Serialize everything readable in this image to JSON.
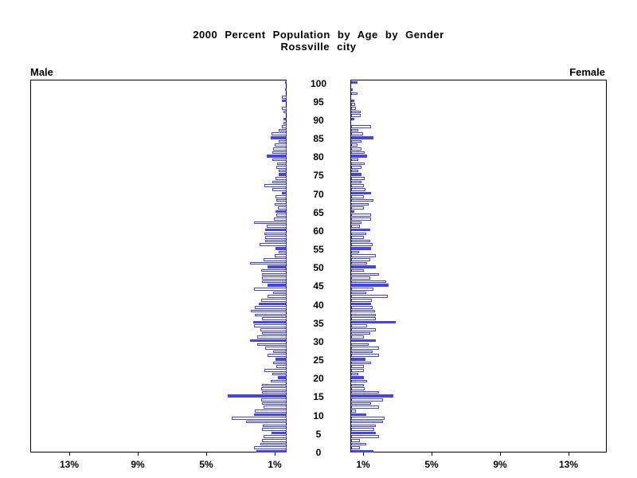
{
  "title": {
    "line1": "2000 Percent Population by Age by Gender",
    "line2": "Rossville city"
  },
  "left_header": "Male",
  "right_header": "Female",
  "colors": {
    "highlight_bar_fill": "#4444ee",
    "bar_outline": "#4343ee",
    "bar_fill": "#ffffff",
    "axis_and_text": "#000000",
    "background": "#ffffff"
  },
  "chart_data": {
    "type": "bar",
    "subtype": "population-pyramid",
    "title": "2000 Percent Population by Age by Gender",
    "subtitle": "Rossville city",
    "age_min": 0,
    "age_max": 100,
    "age_tick_interval": 5,
    "age_tick_labels": [
      "0",
      "5",
      "10",
      "15",
      "20",
      "25",
      "30",
      "35",
      "40",
      "45",
      "50",
      "55",
      "60",
      "65",
      "70",
      "75",
      "80",
      "85",
      "90",
      "95",
      "100"
    ],
    "x_unit": "percent of population",
    "x_max_pct": 15,
    "x_tick_labels_male": [
      {
        "label": "13%",
        "pct": 13
      },
      {
        "label": "9%",
        "pct": 9
      },
      {
        "label": "5%",
        "pct": 5
      },
      {
        "label": "1%",
        "pct": 1
      }
    ],
    "x_tick_labels_female": [
      {
        "label": "1%",
        "pct": 1
      },
      {
        "label": "5%",
        "pct": 5
      },
      {
        "label": "9%",
        "pct": 9
      },
      {
        "label": "13%",
        "pct": 13
      }
    ],
    "highlight_every_n_years": 5,
    "legend_position": "none",
    "grid": false,
    "series": [
      {
        "name": "Male",
        "values": [
          1.75,
          1.9,
          1.55,
          1.45,
          1.35,
          0.9,
          1.45,
          1.4,
          2.35,
          3.2,
          1.9,
          1.85,
          1.35,
          1.45,
          1.5,
          3.45,
          1.45,
          1.5,
          1.45,
          0.95,
          0.5,
          0.85,
          1.3,
          0.6,
          0.8,
          0.65,
          1.1,
          0.8,
          1.25,
          1.7,
          2.15,
          1.7,
          1.45,
          1.55,
          1.9,
          1.95,
          1.45,
          1.85,
          2.1,
          1.85,
          1.65,
          1.5,
          1.1,
          0.8,
          1.9,
          1.1,
          1.45,
          1.45,
          1.45,
          1.5,
          1.1,
          2.15,
          1.35,
          0.7,
          0.45,
          0.65,
          1.6,
          1.25,
          1.25,
          1.3,
          1.25,
          1.15,
          1.9,
          0.75,
          0.6,
          0.65,
          0.5,
          0.7,
          0.6,
          0.65,
          0.3,
          0.85,
          1.3,
          0.85,
          0.65,
          0.45,
          0.45,
          0.6,
          0.55,
          0.85,
          1.15,
          0.85,
          0.8,
          0.7,
          0.45,
          0.95,
          0.9,
          0.45,
          0.3,
          0.2,
          0.2,
          0,
          0.2,
          0.3,
          0,
          0.3,
          0.3,
          0,
          0.1,
          0,
          0.05
        ]
      },
      {
        "name": "Female",
        "values": [
          1.3,
          0.5,
          0.9,
          0.5,
          1.65,
          1.45,
          1.35,
          1.45,
          1.85,
          1.95,
          0.9,
          0.3,
          1.65,
          1.15,
          1.85,
          2.45,
          1.65,
          0.8,
          0.75,
          0.95,
          0.75,
          0.4,
          0.75,
          0.75,
          1.15,
          0.85,
          1.65,
          1.25,
          1.65,
          1.0,
          1.45,
          0.75,
          1.1,
          1.45,
          0.95,
          2.6,
          1.45,
          1.45,
          1.4,
          1.25,
          1.15,
          1.2,
          2.15,
          0.9,
          1.3,
          2.2,
          2.05,
          1.1,
          1.65,
          0.75,
          1.45,
          0.95,
          1.1,
          1.45,
          0.45,
          1.15,
          1.25,
          1.1,
          0.75,
          0.9,
          1.1,
          0.5,
          0.6,
          1.15,
          1.15,
          0.2,
          0.75,
          1.0,
          1.3,
          0.75,
          1.15,
          0.85,
          0.75,
          0.6,
          0.8,
          0.6,
          0.4,
          0.6,
          0.8,
          0.4,
          0.95,
          0.8,
          0.6,
          0.35,
          0.6,
          1.3,
          0.7,
          0.4,
          1.15,
          0,
          0.2,
          0.55,
          0.55,
          0.3,
          0.25,
          0.2,
          0,
          0.35,
          0.1,
          0,
          0.35
        ]
      }
    ]
  }
}
